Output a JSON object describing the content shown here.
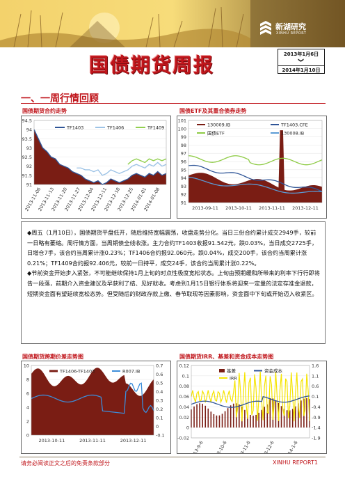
{
  "header": {
    "brand_cn": "新湖研究",
    "brand_en": "XINHU REPORT",
    "title": "国债期货周报",
    "date_start": "2013年1月6日",
    "date_end": "2014年1月10日",
    "date_arrow": "❯"
  },
  "section": {
    "heading": "一、一周行情回顾"
  },
  "charts": {
    "c1_title": "国债期货合约走势",
    "c2_title": "国债ETF及其重合债券走势",
    "c3_title": "国债期货跨期价差走势图",
    "c4_title": "国债期货IRR、基差和资金成本走势图"
  },
  "commentary": {
    "p1": "◆周五（1月10日），国债期货平盘低开，随后维持宽幅震荡，收盘走势分化。当日三份合约累计成交2949手，较前一日略有萎缩。周行情方面，当周期债全线收涨。主力合约TF1403收报91.542元，跌0.03%，当日成交2725手，日增仓7手，该合约当周累计涨0.23%；TF1406合约报92.060元，跌0.04%，成交200手，该合约当周累计涨0.21%；TF1409合约报92.406元，较前一日持平，成交24手，该合约当周累计涨0.22%。",
    "p2": "◆节前资金开始步入紧张，不可能继续保持1月上旬的时点性极度宽松状态。上旬由预期缓和所带来的利率下行行即将告一段落，前期介入资金建议及早获利了结、见好就收。考虑到1月15日银行体系将迎来一定量的法定存准金退款，短期资金面有望延续宽松态势。但受随后的财政存款上缴、春节取现等因素影响，资金面中下旬或开始迈入收紧区。"
  },
  "footer": {
    "disclaimer": "请务必阅读正文之后的免责条款部分",
    "report": "XINHU REPORT",
    "page": "1"
  },
  "colors": {
    "accent": "#c0151b",
    "bar": "#7a1d14",
    "blue": "#2f5597",
    "green": "#8ecb45",
    "yellow": "#f5e400"
  },
  "chart_data": [
    {
      "id": "c1",
      "type": "line",
      "title": "",
      "series": [
        {
          "name": "TF1403",
          "color": "#2f5597",
          "values": [
            94.0,
            93.5,
            93.0,
            92.8,
            92.5,
            92.4,
            92.1,
            92.0,
            91.9,
            91.7,
            91.6,
            91.5,
            91.3,
            91.2,
            91.1,
            91.2,
            91.0,
            91.1,
            91.3,
            91.2,
            91.1,
            91.2,
            91.3,
            91.5,
            91.6,
            91.5,
            91.4,
            91.6,
            91.5,
            91.7,
            91.5,
            91.6
          ]
        },
        {
          "name": "TF1406",
          "color": "#9dc3e6",
          "values": [
            null,
            null,
            null,
            null,
            null,
            null,
            null,
            null,
            null,
            null,
            91.9,
            91.9,
            91.8,
            91.8,
            91.7,
            91.8,
            91.5,
            91.6,
            91.8,
            91.7,
            91.6,
            91.7,
            91.8,
            92.0,
            92.1,
            92.0,
            91.9,
            92.1,
            92.0,
            92.2,
            92.0,
            92.1
          ]
        },
        {
          "name": "TF1409",
          "color": "#92d050",
          "values": [
            null,
            null,
            null,
            null,
            null,
            null,
            null,
            null,
            null,
            null,
            null,
            null,
            null,
            null,
            null,
            null,
            null,
            null,
            null,
            null,
            null,
            null,
            92.1,
            92.3,
            92.4,
            92.3,
            92.2,
            92.4,
            92.3,
            92.4,
            92.3,
            92.4
          ]
        }
      ],
      "x_labels": [
        "2013-11-06",
        "2013-11-13",
        "2013-11-20",
        "2013-11-27",
        "2013-12-04",
        "2013-12-11",
        "2013-12-18",
        "2013-12-25",
        "2014-01-01",
        "2014-01-08"
      ],
      "ylim": [
        91,
        94.5
      ],
      "y_ticks": [
        "91",
        "91.5",
        "92",
        "92.5",
        "93",
        "93.5",
        "94",
        "94.5"
      ]
    },
    {
      "id": "c2",
      "type": "line",
      "title": "",
      "series": [
        {
          "name": "130009.IB",
          "color": "#7a1d14"
        },
        {
          "name": "国债ETF",
          "color": "#8ecb45"
        },
        {
          "name": "TF1403.CFE",
          "color": "#2f5597"
        },
        {
          "name": "130008.IB",
          "color": "#5b9bd5"
        }
      ],
      "x_labels": [
        "2013-09-11",
        "2013-10-11",
        "2013-11-11",
        "2013-12-11"
      ],
      "ylim": [
        91,
        101
      ],
      "y_ticks": [
        "91",
        "92",
        "93",
        "94",
        "95",
        "96",
        "97",
        "98",
        "99",
        "100",
        "101"
      ]
    },
    {
      "id": "c3",
      "type": "bar+line",
      "title": "",
      "series": [
        {
          "name": "TF1406-TF1403",
          "axis": "left"
        },
        {
          "name": "R007.IB",
          "axis": "right"
        }
      ],
      "x_labels": [
        "2013-10-11",
        "2013-11-11",
        "2013-12-11"
      ],
      "ylim_left": [
        0,
        10
      ],
      "y_ticks_left": [
        "0",
        "2",
        "4",
        "6",
        "8",
        "10"
      ],
      "ylim_right": [
        -0.1,
        0.7
      ],
      "y_ticks_right": [
        "-0.1",
        "0",
        "0.1",
        "0.2",
        "0.3",
        "0.4",
        "0.5",
        "0.6",
        "0.7"
      ]
    },
    {
      "id": "c4",
      "type": "bar+line",
      "title": "",
      "series": [
        {
          "name": "基差",
          "axis": "left"
        },
        {
          "name": "资金成本",
          "axis": "left"
        },
        {
          "name": "IRR",
          "axis": "right"
        }
      ],
      "x_labels": [
        "2013-9-6",
        "2013-10-6",
        "2013-11-6",
        "2013-12-6",
        "2014-1-6"
      ],
      "ylim_left": [
        -0.02,
        0.12
      ],
      "y_ticks_left": [
        "-0.02",
        "0",
        "0.02",
        "0.04",
        "0.06",
        "0.08",
        "0.1",
        "0.12"
      ],
      "ylim_right": [
        -1.9,
        1.6
      ],
      "y_ticks_right": [
        "-1.9",
        "-1.4",
        "-0.9",
        "-0.4",
        "0.1",
        "0.6",
        "1.1",
        "1.6"
      ]
    }
  ]
}
